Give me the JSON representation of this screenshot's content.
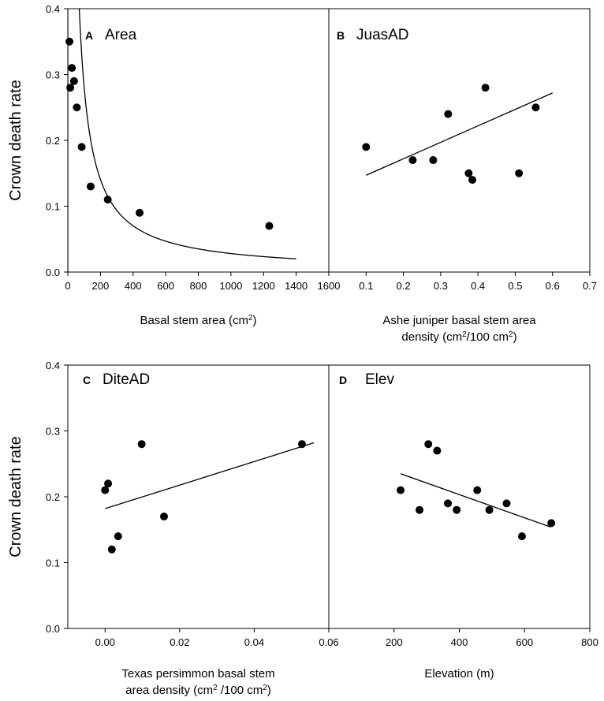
{
  "figure": {
    "y_label_top": "Crown death rate",
    "y_label_bottom": "Crown death rate"
  },
  "chart_data": [
    {
      "type": "scatter",
      "panel_letter": "A",
      "title": "Area",
      "xlabel_lines": [
        [
          "Basal stem area (cm",
          "2",
          ")"
        ]
      ],
      "ylabel": "Crown death rate",
      "xlim": [
        0,
        1600
      ],
      "ylim": [
        0,
        0.4
      ],
      "xticks": [
        0,
        200,
        400,
        600,
        800,
        1000,
        1200,
        1400,
        1600
      ],
      "xtick_labels": [
        "0",
        "200",
        "400",
        "600",
        "800",
        "1000",
        "1200",
        "1400",
        "1600"
      ],
      "yticks": [
        0,
        0.1,
        0.2,
        0.3,
        0.4
      ],
      "ytick_labels": [
        "0.0",
        "0.1",
        "0.2",
        "0.3",
        "0.4"
      ],
      "show_yticks": true,
      "x": [
        10,
        15,
        25,
        38,
        55,
        85,
        140,
        245,
        440,
        1235
      ],
      "y": [
        0.35,
        0.28,
        0.31,
        0.29,
        0.25,
        0.19,
        0.13,
        0.11,
        0.09,
        0.07
      ],
      "fit": "hyperbolic",
      "fit_params": {
        "a": 0.0089,
        "b": 56.2,
        "start": 0,
        "end": 1400
      }
    },
    {
      "type": "scatter",
      "panel_letter": "B",
      "title": "JuasAD",
      "xlabel_lines": [
        [
          "Ashe juniper basal stem area"
        ],
        [
          "density (cm",
          "2",
          "/100 cm",
          "2",
          ")"
        ]
      ],
      "ylabel": "",
      "xlim": [
        0,
        0.7
      ],
      "ylim": [
        0,
        0.4
      ],
      "xticks": [
        0.1,
        0.2,
        0.3,
        0.4,
        0.5,
        0.6,
        0.7
      ],
      "xtick_labels": [
        "0.1",
        "0.2",
        "0.3",
        "0.4",
        "0.5",
        "0.6",
        "0.7"
      ],
      "yticks": [],
      "ytick_labels": [],
      "show_yticks": false,
      "x": [
        0.1,
        0.225,
        0.28,
        0.32,
        0.375,
        0.385,
        0.42,
        0.51,
        0.555
      ],
      "y": [
        0.19,
        0.17,
        0.17,
        0.24,
        0.15,
        0.14,
        0.28,
        0.15,
        0.25
      ],
      "fit": "linear",
      "fit_params": {
        "x0": 0.1,
        "y0": 0.147,
        "x1": 0.6,
        "y1": 0.272
      }
    },
    {
      "type": "scatter",
      "panel_letter": "C",
      "title": "DiteAD",
      "xlabel_lines": [
        [
          "Texas persimmon basal stem"
        ],
        [
          "area density (cm",
          "2",
          " /100 cm",
          "2",
          ")"
        ]
      ],
      "ylabel": "Crown death rate",
      "xlim": [
        -0.01,
        0.06
      ],
      "ylim": [
        0,
        0.4
      ],
      "xticks": [
        0,
        0.02,
        0.04,
        0.06
      ],
      "xtick_labels": [
        "0.00",
        "0.02",
        "0.04",
        "0.06"
      ],
      "yticks": [
        0,
        0.1,
        0.2,
        0.3,
        0.4
      ],
      "ytick_labels": [
        "0.0",
        "0.1",
        "0.2",
        "0.3",
        "0.4"
      ],
      "show_yticks": true,
      "x": [
        0.0,
        0.0008,
        0.0018,
        0.0035,
        0.0098,
        0.0158,
        0.0528
      ],
      "y": [
        0.21,
        0.22,
        0.12,
        0.14,
        0.28,
        0.17,
        0.28
      ],
      "fit": "linear",
      "fit_params": {
        "x0": 0.0,
        "y0": 0.182,
        "x1": 0.056,
        "y1": 0.282
      }
    },
    {
      "type": "scatter",
      "panel_letter": "D",
      "title": "Elev",
      "xlabel_lines": [
        [
          "Elevation (m)"
        ]
      ],
      "ylabel": "",
      "xlim": [
        0,
        800
      ],
      "ylim": [
        0,
        0.4
      ],
      "xticks": [
        200,
        400,
        600,
        800
      ],
      "xtick_labels": [
        "200",
        "400",
        "600",
        "800"
      ],
      "yticks": [],
      "ytick_labels": [],
      "show_yticks": false,
      "x": [
        220,
        278,
        305,
        332,
        365,
        392,
        455,
        492,
        545,
        592,
        682
      ],
      "y": [
        0.21,
        0.18,
        0.28,
        0.27,
        0.19,
        0.18,
        0.21,
        0.18,
        0.19,
        0.14,
        0.16
      ],
      "fit": "linear",
      "fit_params": {
        "x0": 220,
        "y0": 0.235,
        "x1": 680,
        "y1": 0.154
      }
    }
  ]
}
